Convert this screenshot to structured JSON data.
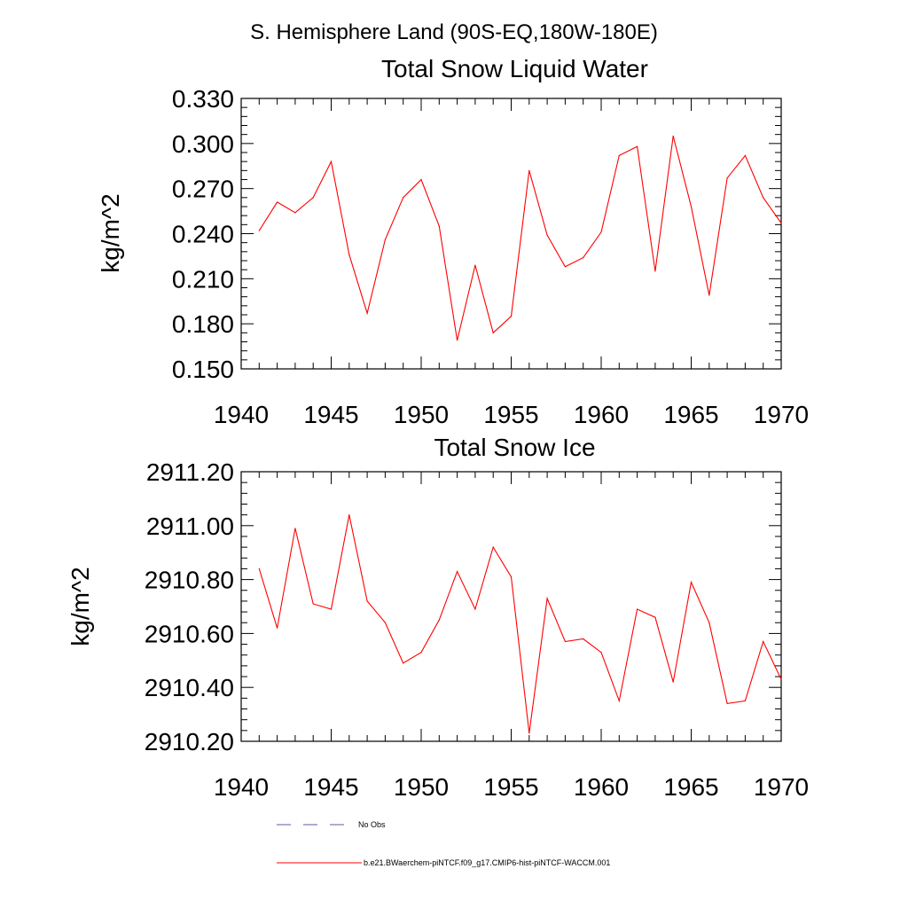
{
  "page_title": "S. Hemisphere Land (90S-EQ,180W-180E)",
  "colors": {
    "series": "#ff0000",
    "obs": "#5a5aa0",
    "axis": "#000000"
  },
  "legend": {
    "obs_label": "No Obs",
    "run_label": "b.e21.BWaerchem-piNTCF.f09_g17.CMIP6-hist-piNTCF-WACCM.001"
  },
  "chart_data": [
    {
      "type": "line",
      "title": "Total Snow Liquid Water",
      "xlabel": "",
      "ylabel": "kg/m^2",
      "xlim": [
        1940,
        1970
      ],
      "ylim": [
        0.15,
        0.33
      ],
      "x_ticks": [
        "1940",
        "1945",
        "1950",
        "1955",
        "1960",
        "1965",
        "1970"
      ],
      "y_ticks": [
        "0.150",
        "0.180",
        "0.210",
        "0.240",
        "0.270",
        "0.300",
        "0.330"
      ],
      "x": [
        1941,
        1942,
        1943,
        1944,
        1945,
        1946,
        1947,
        1948,
        1949,
        1950,
        1951,
        1952,
        1953,
        1954,
        1955,
        1956,
        1957,
        1958,
        1959,
        1960,
        1961,
        1962,
        1963,
        1964,
        1965,
        1966,
        1967,
        1968,
        1969,
        1970
      ],
      "values": [
        0.242,
        0.261,
        0.254,
        0.264,
        0.288,
        0.226,
        0.187,
        0.236,
        0.264,
        0.276,
        0.245,
        0.169,
        0.219,
        0.174,
        0.185,
        0.282,
        0.239,
        0.218,
        0.224,
        0.241,
        0.292,
        0.298,
        0.215,
        0.305,
        0.258,
        0.199,
        0.277,
        0.292,
        0.264,
        0.247
      ]
    },
    {
      "type": "line",
      "title": "Total Snow Ice",
      "xlabel": "",
      "ylabel": "kg/m^2",
      "xlim": [
        1940,
        1970
      ],
      "ylim": [
        2910.2,
        2911.2
      ],
      "x_ticks": [
        "1940",
        "1945",
        "1950",
        "1955",
        "1960",
        "1965",
        "1970"
      ],
      "y_ticks": [
        "2910.20",
        "2910.40",
        "2910.60",
        "2910.80",
        "2911.00",
        "2911.20"
      ],
      "x": [
        1941,
        1942,
        1943,
        1944,
        1945,
        1946,
        1947,
        1948,
        1949,
        1950,
        1951,
        1952,
        1953,
        1954,
        1955,
        1956,
        1957,
        1958,
        1959,
        1960,
        1961,
        1962,
        1963,
        1964,
        1965,
        1966,
        1967,
        1968,
        1969,
        1970
      ],
      "values": [
        2910.84,
        2910.62,
        2910.99,
        2910.71,
        2910.69,
        2911.04,
        2910.72,
        2910.64,
        2910.49,
        2910.53,
        2910.65,
        2910.83,
        2910.69,
        2910.92,
        2910.81,
        2910.23,
        2910.73,
        2910.57,
        2910.58,
        2910.53,
        2910.35,
        2910.69,
        2910.66,
        2910.42,
        2910.79,
        2910.64,
        2910.34,
        2910.35,
        2910.57,
        2910.43
      ]
    }
  ]
}
